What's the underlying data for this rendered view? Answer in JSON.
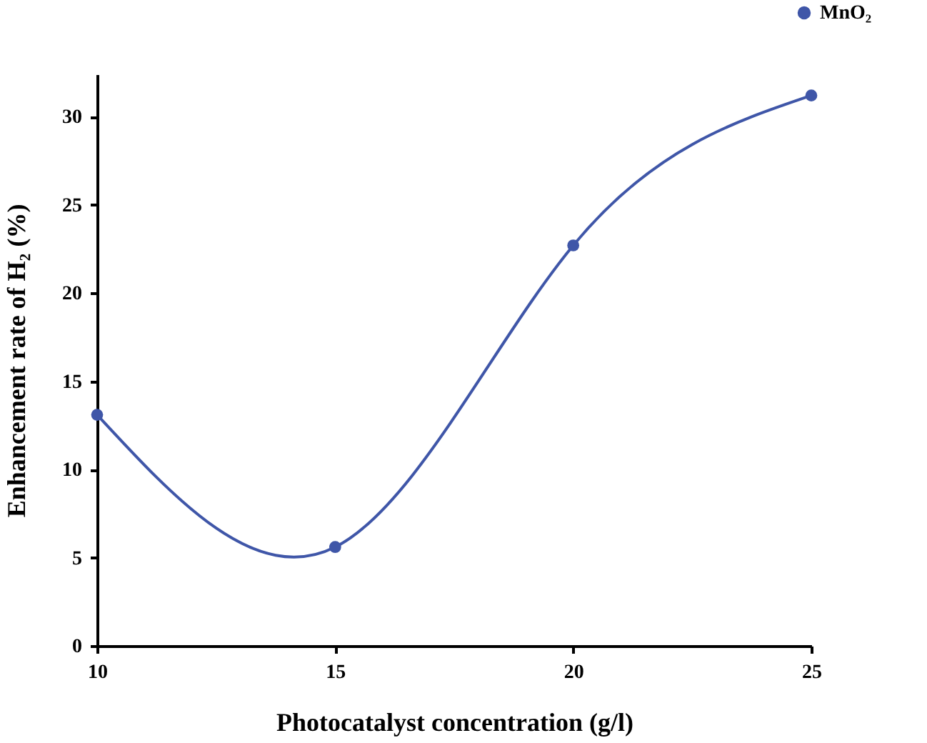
{
  "chart_data": {
    "type": "line",
    "xlabel": "Photocatalyst concentration (g/l)",
    "ylabel": "Enhancement rate of  H₂ (%)",
    "x": [
      10,
      15,
      20,
      25
    ],
    "series": [
      {
        "name": "MnO₂",
        "color": "#3f56a8",
        "values": [
          13.1,
          5.6,
          22.7,
          31.2
        ]
      }
    ],
    "xlim": [
      10,
      25
    ],
    "xticks": [
      10,
      15,
      20,
      25
    ],
    "ylim": [
      0,
      32.4
    ],
    "yticks": [
      0,
      5,
      10,
      15,
      20,
      25,
      30
    ],
    "grid": false,
    "legend": "top right",
    "marker": "circle",
    "line_style": "solid"
  }
}
